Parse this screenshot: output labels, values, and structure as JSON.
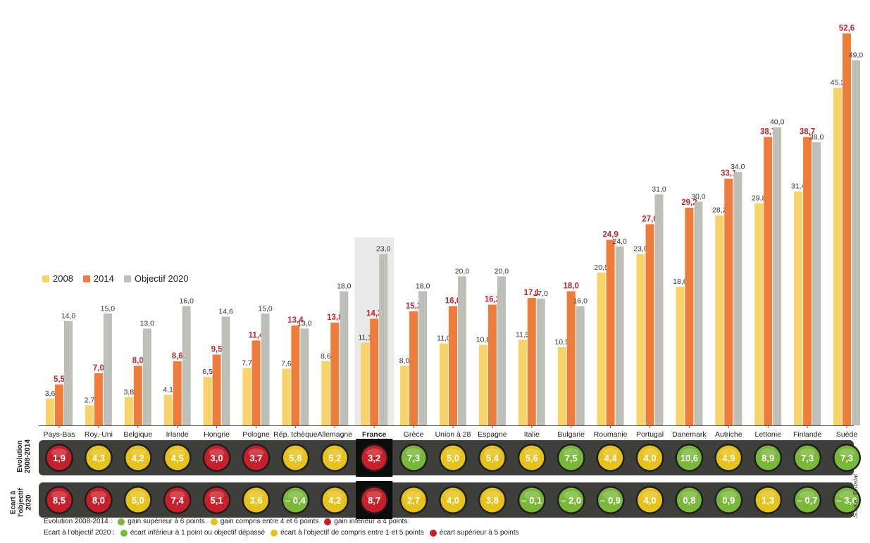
{
  "legend": {
    "items": [
      {
        "label": "2008",
        "color": "#f7d36a"
      },
      {
        "label": "2014",
        "color": "#ee7d3b"
      },
      {
        "label": "Objectif 2020",
        "color": "#bcc0b8"
      }
    ]
  },
  "colors": {
    "bar_2008": "#f7d36a",
    "bar_2014": "#ee7d3b",
    "bar_target": "#bcc0b8",
    "value_2014_text": "#c0272d",
    "panel_bg": "#3e3f3b",
    "green": "#7ab83a",
    "yellow": "#e6c21c",
    "red": "#c8202a",
    "france_highlight": "#e9e9e9"
  },
  "chart_data": {
    "type": "bar",
    "categories": [
      "Pays-Bas",
      "Roy.-Uni",
      "Belgique",
      "Irlande",
      "Hongrie",
      "Pologne",
      "Rép. tchèque",
      "Allemagne",
      "France",
      "Grèce",
      "Union à 28",
      "Espagne",
      "Italie",
      "Bulgarie",
      "Roumanie",
      "Portugal",
      "Danemark",
      "Autriche",
      "Lettonie",
      "Finlande",
      "Suède"
    ],
    "highlight": "France",
    "series": [
      {
        "name": "2008",
        "values": [
          3.6,
          2.7,
          3.8,
          4.1,
          6.5,
          7.7,
          7.6,
          8.6,
          11.1,
          8.0,
          11.0,
          10.8,
          11.5,
          10.5,
          20.5,
          23.0,
          18.6,
          28.2,
          29.8,
          31.4,
          45.3
        ],
        "labels": [
          "3,6",
          "2,7",
          "3,8",
          "4,1",
          "6,5",
          "7,7",
          "7,6",
          "8,6",
          "11,1",
          "8,0",
          "11,0",
          "10,8",
          "11,5",
          "10,5",
          "20,5",
          "23,0",
          "18,6",
          "28,2",
          "29,8",
          "31,4",
          "45,3"
        ]
      },
      {
        "name": "2014",
        "values": [
          5.5,
          7.0,
          8.0,
          8.6,
          9.5,
          11.4,
          13.4,
          13.8,
          14.3,
          15.3,
          16.0,
          16.2,
          17.1,
          18.0,
          24.9,
          27.0,
          29.2,
          33.1,
          38.7,
          38.7,
          52.6
        ],
        "labels": [
          "5,5",
          "7,0",
          "8,0",
          "8,6",
          "9,5",
          "11,4",
          "13,4",
          "13,8",
          "14,3",
          "15,3",
          "16,0",
          "16,2",
          "17,1",
          "18,0",
          "24,9",
          "27,0",
          "29,2",
          "33,1",
          "38,7",
          "38,7",
          "52,6"
        ]
      },
      {
        "name": "Objectif 2020",
        "values": [
          14.0,
          15.0,
          13.0,
          16.0,
          14.6,
          15.0,
          13.0,
          18.0,
          23.0,
          18.0,
          20.0,
          20.0,
          17.0,
          16.0,
          24.0,
          31.0,
          30.0,
          34.0,
          40.0,
          38.0,
          49.0
        ],
        "labels": [
          "14,0",
          "15,0",
          "13,0",
          "16,0",
          "14,6",
          "15,0",
          "13,0",
          "18,0",
          "23,0",
          "18,0",
          "20,0",
          "20,0",
          "17,0",
          "16,0",
          "24,0",
          "31,0",
          "30,0",
          "34,0",
          "40,0",
          "38,0",
          "49,0"
        ]
      }
    ],
    "ylim": [
      0,
      55
    ],
    "grid": false,
    "legend_position": "left",
    "indicator_rows": [
      {
        "label": "Evolution\n2008-2014",
        "values": [
          "1,9",
          "4,3",
          "4,2",
          "4,5",
          "3,0",
          "3,7",
          "5,8",
          "5,2",
          "3,2",
          "7,3",
          "5,0",
          "5,4",
          "5,6",
          "7,5",
          "4,4",
          "4,0",
          "10,6",
          "4,9",
          "8,9",
          "7,3",
          "7,3"
        ],
        "status": [
          "red",
          "yellow",
          "yellow",
          "yellow",
          "red",
          "red",
          "yellow",
          "yellow",
          "red",
          "green",
          "yellow",
          "yellow",
          "yellow",
          "green",
          "yellow",
          "yellow",
          "green",
          "yellow",
          "green",
          "green",
          "green"
        ]
      },
      {
        "label": "Ecart à\nl'objectif\n2020",
        "values": [
          "8,5",
          "8,0",
          "5,0",
          "7,4",
          "5,1",
          "3,6",
          "– 0,4",
          "4,2",
          "8,7",
          "2,7",
          "4,0",
          "3,8",
          "– 0,1",
          "– 2,0",
          "– 0,9",
          "4,0",
          "0,8",
          "0,9",
          "1,3",
          "– 0,7",
          "– 3,6"
        ],
        "status": [
          "red",
          "red",
          "yellow",
          "red",
          "red",
          "yellow",
          "green",
          "yellow",
          "red",
          "yellow",
          "yellow",
          "yellow",
          "green",
          "green",
          "green",
          "yellow",
          "green",
          "green",
          "yellow",
          "green",
          "green"
        ]
      }
    ]
  },
  "footer": {
    "row1": {
      "title": "Evolution 2008-2014 :",
      "items": [
        {
          "color": "green",
          "label": "gain supérieur à 6 points"
        },
        {
          "color": "yellow",
          "label": "gain compris entre 4 et 6 points"
        },
        {
          "color": "red",
          "label": "gain inférieur à 4 points"
        }
      ]
    },
    "row2": {
      "title": "Ecart à l'objectif 2020 :",
      "items": [
        {
          "color": "green",
          "label": "écart inférieur à 1 point ou objectif dépassé"
        },
        {
          "color": "yellow",
          "label": "écart à l'objectif de compris entre 1 et 5 points"
        },
        {
          "color": "red",
          "label": "écart supérieur à 5 points"
        }
      ]
    }
  },
  "source": "Source : Eurostat"
}
